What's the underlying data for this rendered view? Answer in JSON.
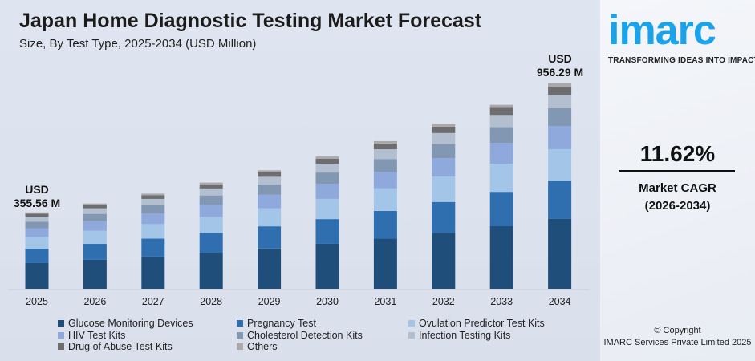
{
  "header": {
    "title": "Japan Home Diagnostic Testing Market Forecast",
    "subtitle": "Size, By Test Type, 2025-2034 (USD Million)"
  },
  "chart_data": {
    "type": "bar",
    "stacked": true,
    "title": "Japan Home Diagnostic Testing Market Forecast",
    "subtitle": "Size, By Test Type, 2025-2034 (USD Million)",
    "categories": [
      "2025",
      "2026",
      "2027",
      "2028",
      "2029",
      "2030",
      "2031",
      "2032",
      "2033",
      "2034"
    ],
    "ylim": [
      0,
      956.29
    ],
    "grid": false,
    "legend_position": "bottom",
    "series": [
      {
        "name": "Glucose Monitoring Devices",
        "color": "#1f4e7a",
        "values": [
          120.9,
          134.9,
          150.6,
          168.1,
          187.6,
          209.4,
          233.8,
          261.0,
          291.3,
          325.1
        ]
      },
      {
        "name": "Pregnancy Test",
        "color": "#2f6fb0",
        "values": [
          66.5,
          74.2,
          82.8,
          92.5,
          103.2,
          115.2,
          128.6,
          143.5,
          160.2,
          178.8
        ]
      },
      {
        "name": "Ovulation Predictor Test Kits",
        "color": "#a3c6e8",
        "values": [
          54.4,
          60.7,
          67.8,
          75.7,
          84.4,
          94.2,
          105.2,
          117.4,
          131.1,
          146.3
        ]
      },
      {
        "name": "HIV Test Kits",
        "color": "#8fa9dc",
        "values": [
          40.2,
          44.8,
          50.1,
          55.9,
          62.4,
          69.6,
          77.7,
          86.7,
          96.8,
          108.1
        ]
      },
      {
        "name": "Cholesterol Detection Kits",
        "color": "#8298b2",
        "values": [
          30.6,
          34.1,
          38.1,
          42.5,
          47.5,
          53.0,
          59.1,
          66.0,
          73.7,
          82.2
        ]
      },
      {
        "name": "Infection Testing Kits",
        "color": "#b3bfcf",
        "values": [
          23.5,
          26.2,
          29.2,
          32.6,
          36.4,
          40.7,
          45.4,
          50.7,
          56.5,
          63.1
        ]
      },
      {
        "name": "Drug of Abuse Test Kits",
        "color": "#6d6d70",
        "values": [
          13.9,
          15.5,
          17.3,
          19.3,
          21.5,
          24.0,
          26.8,
          29.9,
          33.4,
          37.3
        ]
      },
      {
        "name": "Others",
        "color": "#aaa8a8",
        "values": [
          5.7,
          6.4,
          7.1,
          7.9,
          8.8,
          9.9,
          11.0,
          12.3,
          13.7,
          15.3
        ]
      }
    ],
    "annotations": [
      {
        "category": "2025",
        "line1": "USD",
        "line2": "355.56 M"
      },
      {
        "category": "2034",
        "line1": "USD",
        "line2": "956.29 M"
      }
    ]
  },
  "brand": {
    "logo": "imarc",
    "tagline": "TRANSFORMING IDEAS INTO IMPACT"
  },
  "cagr": {
    "value": "11.62%",
    "label": "Market CAGR",
    "period": "(2026-2034)"
  },
  "footer": {
    "copyright": "© Copyright",
    "company": "IMARC Services Private Limited 2025"
  }
}
